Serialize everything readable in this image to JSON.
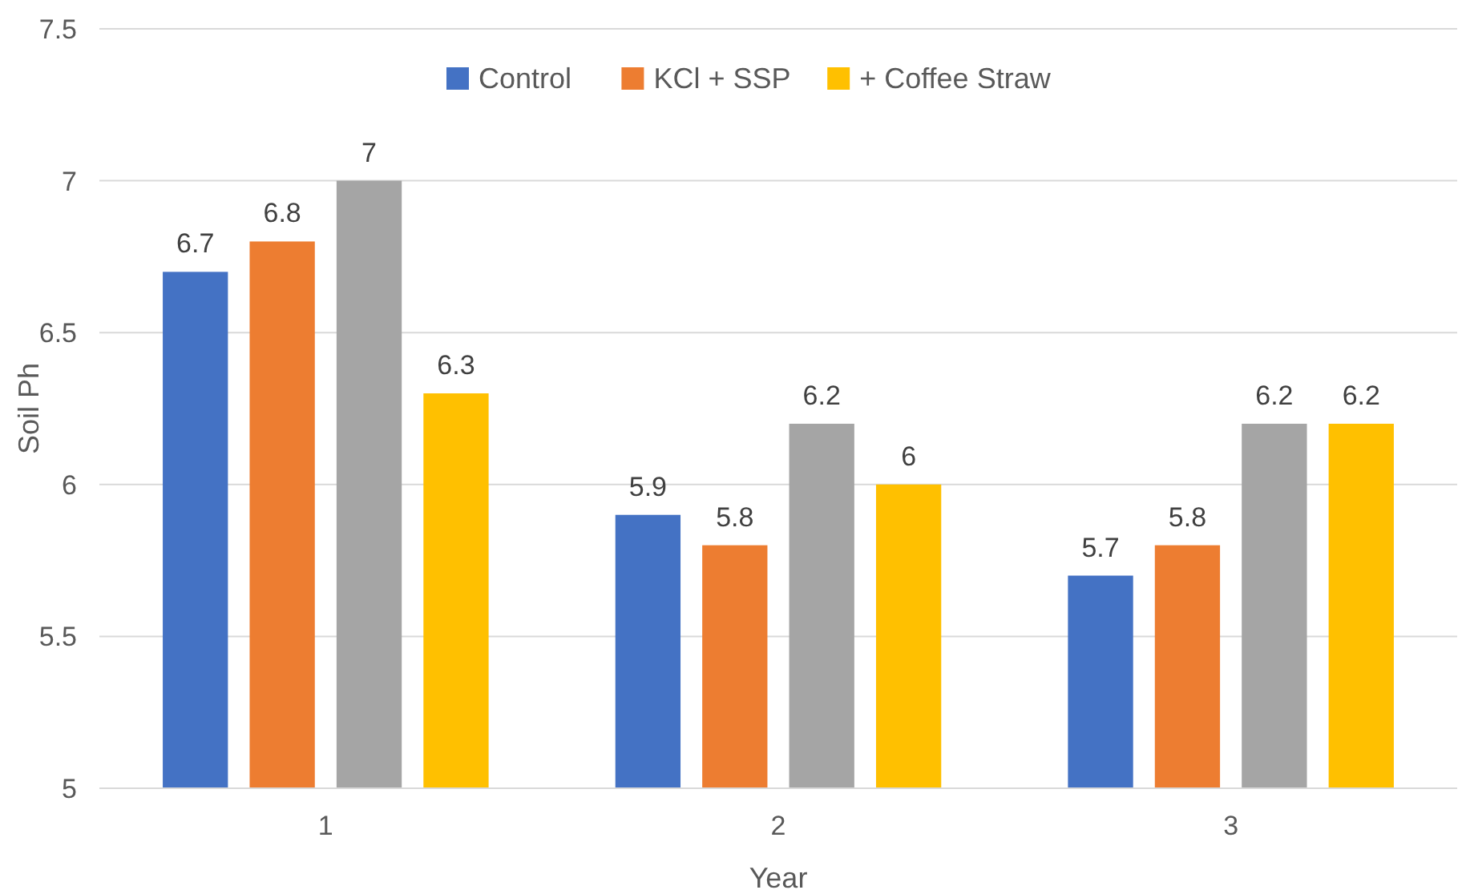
{
  "chart_data": {
    "type": "bar",
    "xlabel": "Year",
    "ylabel": "Soil Ph",
    "categories": [
      "1",
      "2",
      "3"
    ],
    "series": [
      {
        "name": "Control",
        "color": "#4472c4",
        "values": [
          6.7,
          5.9,
          5.7
        ]
      },
      {
        "name": "KCl + SSP",
        "color": "#ed7d31",
        "values": [
          6.8,
          5.8,
          5.8
        ]
      },
      {
        "color": "#a5a5a5",
        "values": [
          7,
          6.2,
          6.2
        ]
      },
      {
        "name": "+ Coffee Straw",
        "color": "#ffc000",
        "values": [
          6.3,
          6,
          6.2
        ]
      }
    ],
    "ylim": [
      5,
      7.5
    ],
    "yticks": [
      5,
      5.5,
      6,
      6.5,
      7,
      7.5
    ],
    "grid": "y",
    "legend": "top",
    "data_labels": true
  }
}
